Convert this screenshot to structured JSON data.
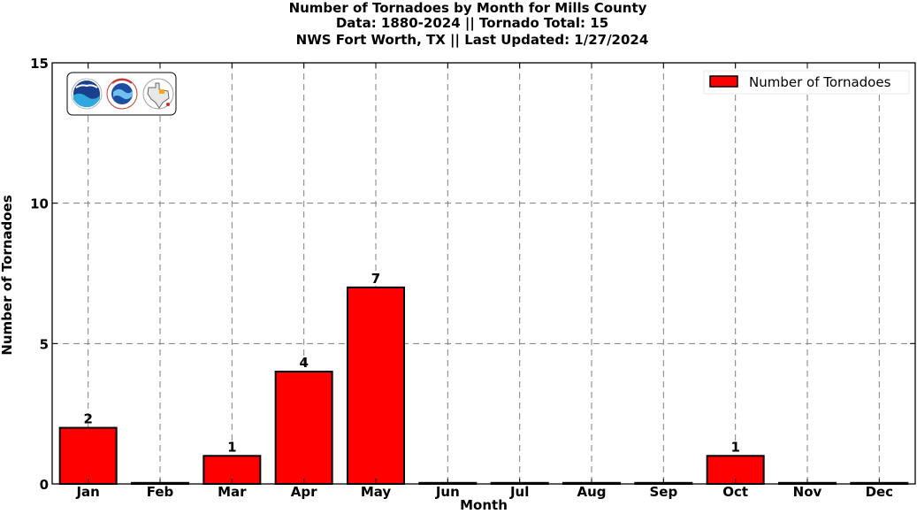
{
  "chart_data": {
    "type": "bar",
    "title": [
      "Number of Tornadoes by Month for Mills County",
      "Data: 1880-2024 || Tornado Total: 15",
      "NWS Fort Worth, TX || Last Updated: 1/27/2024"
    ],
    "xlabel": "Month",
    "ylabel": "Number of Tornadoes",
    "categories": [
      "Jan",
      "Feb",
      "Mar",
      "Apr",
      "May",
      "Jun",
      "Jul",
      "Aug",
      "Sep",
      "Oct",
      "Nov",
      "Dec"
    ],
    "series": [
      {
        "name": "Number of Tornadoes",
        "values": [
          2,
          0,
          1,
          4,
          7,
          0,
          0,
          0,
          0,
          1,
          0,
          0
        ],
        "color": "#ff0000"
      }
    ],
    "data_labels": [
      "2",
      "",
      "1",
      "4",
      "7",
      "",
      "",
      "",
      "",
      "1",
      "",
      ""
    ],
    "ylim": [
      0,
      15
    ],
    "yticks": [
      0,
      5,
      10,
      15
    ],
    "grid": true,
    "legend_position": "top-right",
    "logos": [
      "noaa-logo",
      "nws-logo",
      "texas-logo"
    ]
  }
}
